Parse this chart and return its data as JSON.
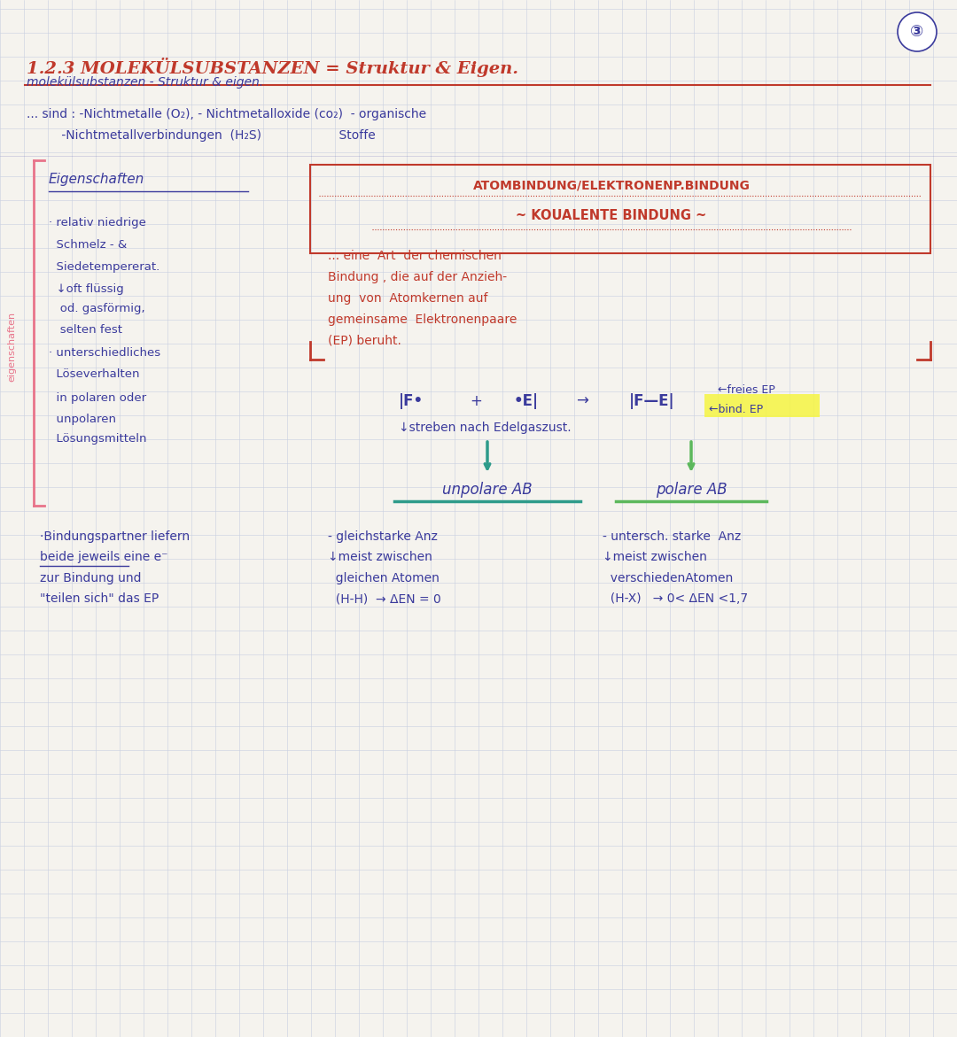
{
  "background_color": "#f5f3ee",
  "grid_color": "#c8cfe0",
  "page_number": "3",
  "title_red": "1.2.3 MOLEKÜLSUBSTANZEN = Struktur & Eigen.",
  "title_blue": "molekülsubstanzen - Struktur & eigen.",
  "sind_line1": "... sind : -Nichtmetalle (O₂), - Nichtmetalloxide (co₂)  - organische",
  "sind_line2": "         -Nichtmetallverbindungen  (H₂S)                    Stoffe",
  "left_header": "Eigenschaften",
  "left_bullets": [
    "· relativ niedrige",
    "  Schmelz - &",
    "  Siedetempererat.",
    "  ↓oft flüssig",
    "   od. gasförmig,",
    "   selten fest",
    "· unterschiedliches",
    "  Löseverhalten",
    "  in polaren oder",
    "  unpolaren",
    "  Lösungsmitteln"
  ],
  "left_sidebar_text": "eigenschaften",
  "right_header": "ATOMBINDUNG/ELEKTRONENP.BINDUNG",
  "right_subheader": "~ KOUALENTE BINDUNG ~",
  "right_body": [
    "... eine  Art  der chemischen",
    "Bindung , die auf der Anzieh-",
    "ung  von  Atomkernen auf",
    "gemeinsame  Elektronenpaare",
    "(EP) beruht."
  ],
  "freies_ep": "←freies EP",
  "streben": "↓streben nach Edelgaszust.",
  "bind_ep": "←bind. EP",
  "unpolare_ab": "unpolare AB",
  "polare_ab": "polare AB",
  "bottom_left": [
    "·Bindungspartner liefern",
    "beide jeweils eine e⁻",
    "zur Bindung und",
    "\"teilen sich\" das EP"
  ],
  "bottom_mid": [
    "- gleichstarke Anz",
    "↓meist zwischen",
    "  gleichen Atomen",
    "  (H-H)  → ΔEN = 0"
  ],
  "bottom_right": [
    "- untersch. starke  Anz",
    "↓meist zwischen",
    "  verschiedenAtomen",
    "  (H-X)   → 0< ΔEN <1,7"
  ],
  "blue": "#3a3a9c",
  "red": "#c0392b",
  "pink": "#e8748a",
  "teal": "#2e9b8a",
  "green": "#5cb85c",
  "yellow_hl": "#f5f542"
}
